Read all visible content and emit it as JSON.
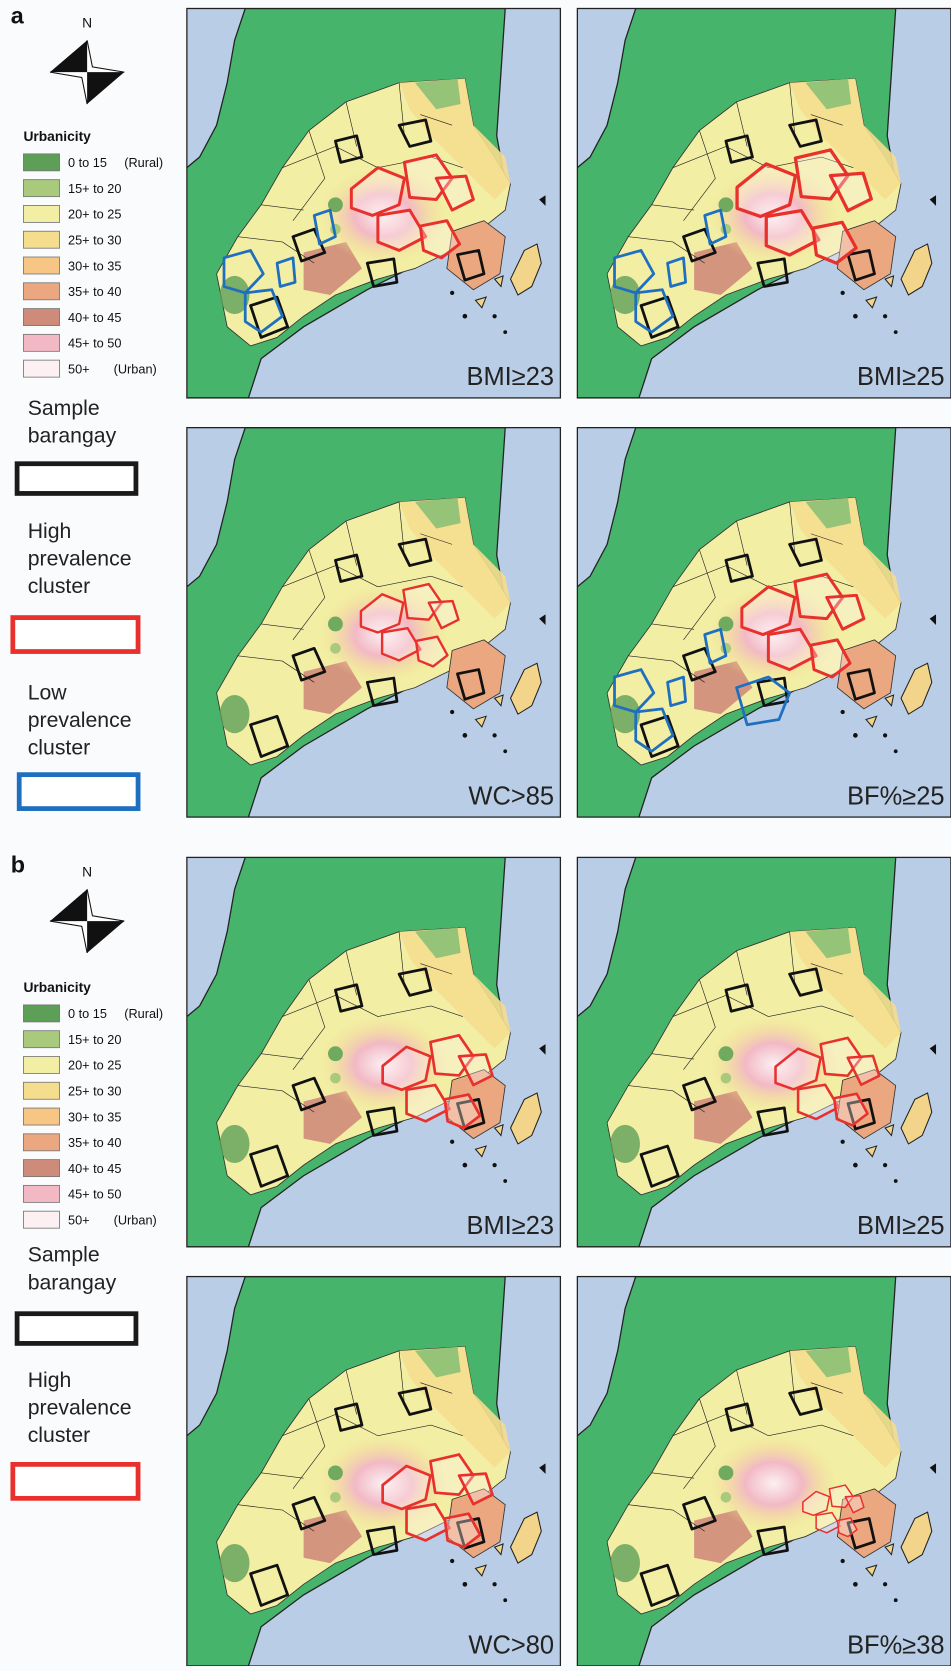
{
  "figure": {
    "legend_items": [
      {
        "label": "0 to 15",
        "note": "(Rural)",
        "color": "#5e9f57"
      },
      {
        "label": "15+ to 20",
        "color": "#a9c97c"
      },
      {
        "label": "20+ to 25",
        "color": "#f2eea4"
      },
      {
        "label": "25+ to 30",
        "color": "#f5dd8e"
      },
      {
        "label": "30+ to 35",
        "color": "#f7c684"
      },
      {
        "label": "35+ to 40",
        "color": "#eba77f"
      },
      {
        "label": "40+ to 45",
        "color": "#cf8b7a"
      },
      {
        "label": "45+ to 50",
        "color": "#f2b9c5"
      },
      {
        "label": "50+",
        "note": "(Urban)",
        "color": "#fcf0f3"
      }
    ],
    "panels": [
      {
        "label": "a",
        "north": "N",
        "legend_title": "Urbanicity",
        "symbols": [
          {
            "label": "Sample barangay",
            "color": "#1a1a1a"
          },
          {
            "label": "High prevalence cluster",
            "color": "#e8302c"
          },
          {
            "label": "Low prevalence cluster",
            "color": "#1f6fc0"
          }
        ],
        "maps": [
          {
            "label": "BMI≥23"
          },
          {
            "label": "BMI≥25"
          },
          {
            "label": "WC>85"
          },
          {
            "label": "BF%≥25"
          }
        ]
      },
      {
        "label": "b",
        "north": "N",
        "legend_title": "Urbanicity",
        "symbols": [
          {
            "label": "Sample barangay",
            "color": "#1a1a1a"
          },
          {
            "label": "High prevalence cluster",
            "color": "#e8302c"
          }
        ],
        "maps": [
          {
            "label": "BMI≥23"
          },
          {
            "label": "BMI≥25"
          },
          {
            "label": "WC>80"
          },
          {
            "label": "BF%≥38"
          }
        ]
      }
    ]
  }
}
